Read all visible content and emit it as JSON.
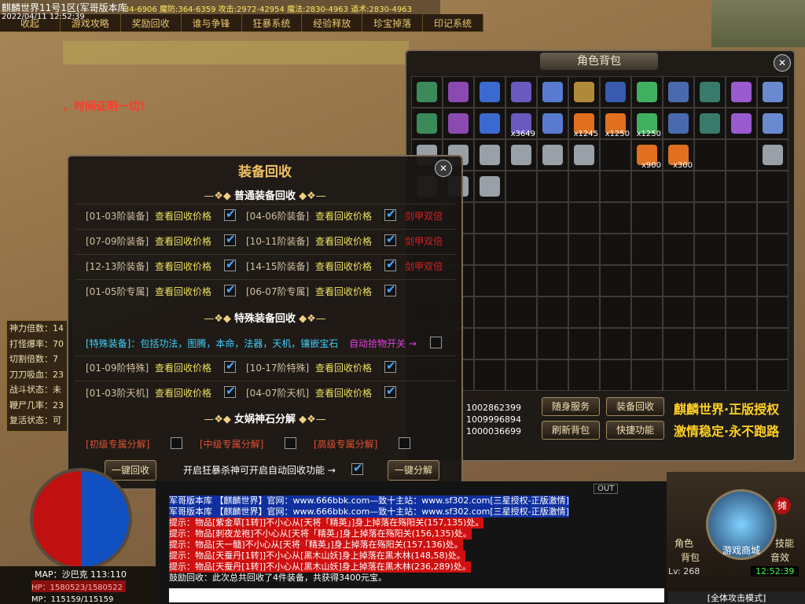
{
  "header": {
    "title": "麒麟世界11号1区(军哥版本库",
    "stats": "34-6906 魔防:364-6359 攻击:2972-42954 魔法:2830-4963 道术:2830-4963",
    "datetime": "2022/04/11 12:52:39"
  },
  "menu": [
    "收起",
    "游戏攻略",
    "奖励回收",
    "谁与争锋",
    "狂暴系统",
    "经验释放",
    "珍宝掉落",
    "印记系统"
  ],
  "banner": "，时间证明一切！",
  "bag": {
    "title": "角色背包",
    "counts": [
      "x3649",
      "x1245",
      "x1250",
      "x1250",
      "x900",
      "x300"
    ],
    "ids": [
      "1002862399",
      "1009996894",
      "1000036699"
    ],
    "buttons": [
      "随身服务",
      "装备回收",
      "刷新背包",
      "快捷功能"
    ],
    "slogans": [
      "麒麟世界·正版授权",
      "激情稳定·永不跑路"
    ]
  },
  "recycle": {
    "title": "装备回收",
    "normal": {
      "heading": "普通装备回收",
      "rows": [
        [
          "[01-03阶装备]",
          "查看回收价格",
          "[04-06阶装备]",
          "查看回收价格",
          "剑甲双倍"
        ],
        [
          "[07-09阶装备]",
          "查看回收价格",
          "[10-11阶装备]",
          "查看回收价格",
          "剑甲双倍"
        ],
        [
          "[12-13阶装备]",
          "查看回收价格",
          "[14-15阶装备]",
          "查看回收价格",
          "剑甲双倍"
        ],
        [
          "[01-05阶专属]",
          "查看回收价格",
          "[06-07阶专属]",
          "查看回收价格"
        ]
      ]
    },
    "special": {
      "heading": "特殊装备回收",
      "desc": "[特殊装备]：包括功法，图腾，本命，法器，天机，镶嵌宝石",
      "auto": "自动拾物开关 →",
      "rows": [
        [
          "[01-09阶特殊]",
          "查看回收价格",
          "[10-17阶特殊]",
          "查看回收价格"
        ],
        [
          "[01-03阶天机]",
          "查看回收价格",
          "[04-07阶天机]",
          "查看回收价格"
        ]
      ]
    },
    "stone": {
      "heading": "女娲神石分解",
      "options": [
        "[初级专属分解]",
        "[中级专属分解]",
        "[高级专属分解]"
      ]
    },
    "footer": [
      "一键回收",
      "开启狂暴杀神可开启自动回收功能 →",
      "一键分解"
    ]
  },
  "status": [
    "神力倍数：14",
    "打怪爆率：70",
    "切割倍数：7",
    "刀刀吸血：23",
    "战斗状态：未",
    "鞭尸几率：23",
    "复活状态：可"
  ],
  "player": {
    "map": "MAP：沙巴克 113:110",
    "hp": "HP：1580523/1580522",
    "mp": "MP：115159/115159",
    "level": "Lv: 268",
    "time": "12:52:39",
    "mode": "[全体攻击模式]"
  },
  "chat": {
    "out": "OUT",
    "lines": [
      "军哥版本库 【麒麟世界】官网：www.666bbk.com—致十主站：www.sf302.com[三星授权-正版激情]",
      "军哥版本库 【麒麟世界】官网：www.666bbk.com—致十主站：www.sf302.com[三星授权-正版激情]",
      "提示：物品[紫金草[1转]]不小心从[天将「精英」]身上掉落在殇阳关(157,135)处。",
      "提示：物品[刺夜龙袍]不小心从[天将「精英」]身上掉落在殇阳关(156,135)处。",
      "提示：物品[天一髓]不小心从[天将「精英」]身上掉落在殇阳关(157,136)处。",
      "提示：物品[天蚕丹[1转]]不小心从[黑木山妖]身上掉落在黑木林(148,58)处。",
      "提示：物品[天蚕丹[1转]]不小心从[黑木山妖]身上掉落在黑木林(236,289)处。",
      "鼓励回收：此次总共回收了4件装备，共获得3400元宝。"
    ]
  },
  "hud": {
    "buttons": [
      "角色",
      "技能",
      "背包",
      "音效"
    ],
    "shop": "游戏商城",
    "stall": "摊"
  }
}
